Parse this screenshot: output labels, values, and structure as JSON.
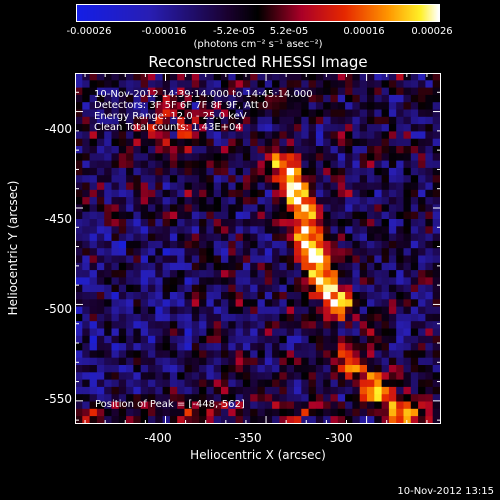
{
  "colorbar": {
    "ticks": [
      "-0.00026",
      "-0.00016",
      "-5.2e-05",
      "5.2e-05",
      "0.00016",
      "0.00026"
    ],
    "unit": "(photons cm⁻² s⁻¹ asec⁻²)",
    "range": [
      -0.00026,
      0.00026
    ],
    "colormap": "blue-black-red-yellow-white"
  },
  "chart_data": {
    "type": "heatmap",
    "title": "Reconstructed RHESSI Image",
    "xlabel": "Heliocentric X (arcsec)",
    "ylabel": "Heliocentric Y (arcsec)",
    "xlim": [
      -445,
      -263
    ],
    "ylim": [
      -562,
      -380
    ],
    "xticks": [
      -400,
      -350,
      -300
    ],
    "yticks": [
      -400,
      -450,
      -500,
      -550
    ],
    "annotations": [
      "10-Nov-2012 14:39:14.000 to 14:45:14.000",
      "Detectors: 3F 5F 6F 7F 8F 9F, Att 0",
      "Energy Range: 12.0 - 25.0 keV",
      "Clean     Total counts: 1.43E+04"
    ],
    "peak_label": "Position of Peak = [-448,-562]",
    "peak": [
      -448,
      -562
    ],
    "ridge": [
      [
        -340,
        -428
      ],
      [
        -336,
        -440
      ],
      [
        -332,
        -455
      ],
      [
        -327,
        -470
      ],
      [
        -322,
        -487
      ],
      [
        -315,
        -500
      ]
    ],
    "secondary": [
      [
        -310,
        -525
      ],
      [
        -292,
        -548
      ],
      [
        -275,
        -560
      ]
    ],
    "colors": {
      "axes": "#ffffff",
      "background": "#000000"
    }
  },
  "footer": {
    "timestamp": "10-Nov-2012 13:15"
  }
}
